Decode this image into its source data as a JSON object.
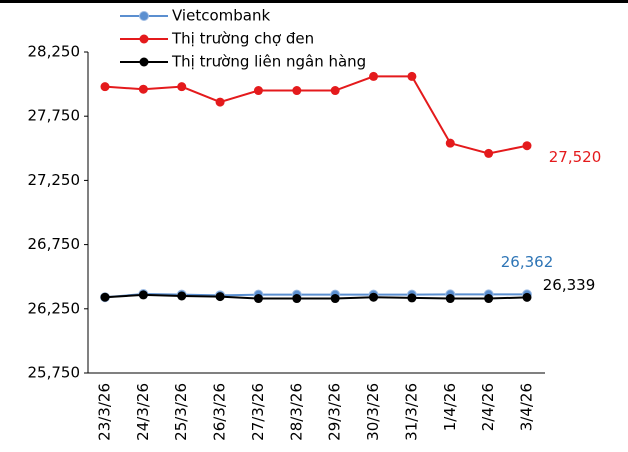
{
  "chart_data": {
    "type": "line",
    "categories": [
      "23/3/26",
      "24/3/26",
      "25/3/26",
      "26/3/26",
      "27/3/26",
      "28/3/26",
      "29/3/26",
      "30/3/26",
      "31/3/26",
      "1/4/26",
      "2/4/26",
      "3/4/26"
    ],
    "series": [
      {
        "name": "Vietcombank",
        "color": "#5b8fd0",
        "label_color": "#2e75b6",
        "values": [
          26340,
          26365,
          26360,
          26355,
          26360,
          26360,
          26360,
          26360,
          26360,
          26362,
          26362,
          26362
        ],
        "value_labels": [
          null,
          null,
          null,
          null,
          null,
          null,
          null,
          null,
          null,
          null,
          null,
          "26,362"
        ]
      },
      {
        "name": "Thị trường chợ đen",
        "color": "#e41a1c",
        "label_color": "#e41a1c",
        "values": [
          27980,
          27960,
          27980,
          27860,
          27950,
          27950,
          27950,
          28060,
          28060,
          27540,
          27460,
          27520
        ],
        "value_labels": [
          null,
          null,
          null,
          null,
          null,
          null,
          null,
          null,
          null,
          null,
          null,
          "27,520"
        ]
      },
      {
        "name": "Thị trường liên ngân hàng",
        "color": "#000000",
        "label_color": "#000000",
        "values": [
          26340,
          26358,
          26350,
          26345,
          26330,
          26330,
          26330,
          26340,
          26335,
          26330,
          26330,
          26339
        ],
        "value_labels": [
          null,
          null,
          null,
          null,
          null,
          null,
          null,
          null,
          null,
          null,
          null,
          "26,339"
        ]
      }
    ],
    "ylim": [
      25750,
      28250
    ],
    "yticks": [
      {
        "value": 25750,
        "label": "25,750"
      },
      {
        "value": 26250,
        "label": "26,250"
      },
      {
        "value": 26750,
        "label": "26,750"
      },
      {
        "value": 27250,
        "label": "27,250"
      },
      {
        "value": 27750,
        "label": "27,750"
      },
      {
        "value": 28250,
        "label": "28,250"
      }
    ],
    "grid": false,
    "legend": "top-left"
  }
}
